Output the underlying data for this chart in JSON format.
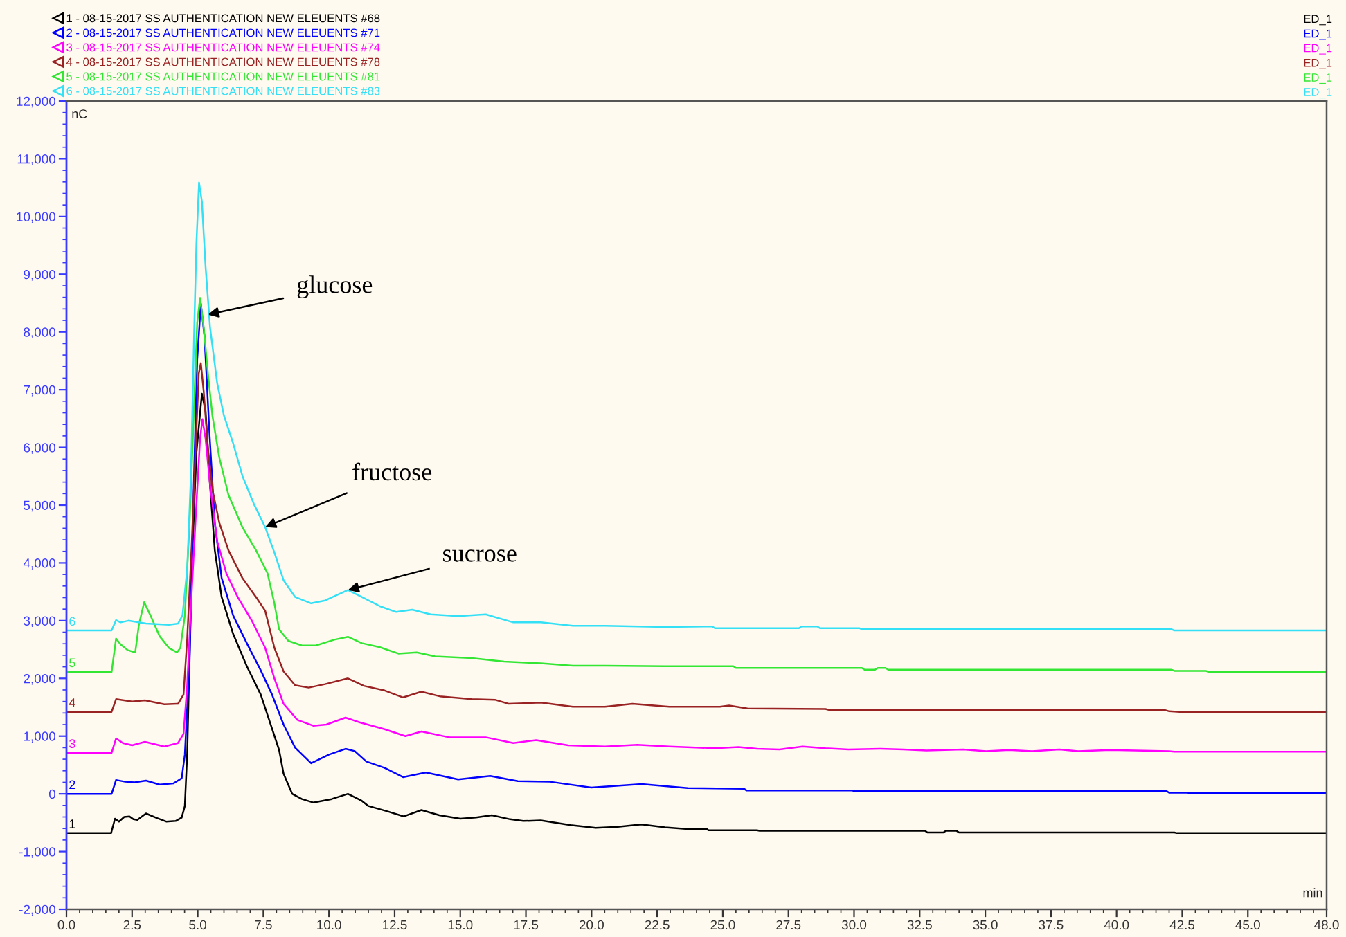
{
  "chart_data": {
    "type": "line",
    "xlabel": "min",
    "ylabel": "nC",
    "xlim": [
      0,
      48
    ],
    "ylim": [
      -2000,
      12000
    ],
    "xticks": [
      {
        "value": 0,
        "label": "0.0"
      },
      {
        "value": 0.5,
        "label": null
      },
      {
        "value": 1,
        "label": null
      },
      {
        "value": 1.5,
        "label": null
      },
      {
        "value": 2,
        "label": null
      },
      2.5,
      {
        "value": 3,
        "label": null
      },
      {
        "value": 3.5,
        "label": null
      },
      {
        "value": 4,
        "label": null
      },
      {
        "value": 4.5,
        "label": null
      },
      {
        "value": 5,
        "label": "5.0"
      },
      {
        "value": 5.5,
        "label": null
      },
      {
        "value": 6,
        "label": null
      },
      {
        "value": 6.5,
        "label": null
      },
      {
        "value": 7,
        "label": null
      },
      7.5,
      {
        "value": 8,
        "label": null
      },
      {
        "value": 8.5,
        "label": null
      },
      {
        "value": 9,
        "label": null
      },
      {
        "value": 9.5,
        "label": null
      },
      {
        "value": 10,
        "label": "10.0"
      },
      {
        "value": 10.5,
        "label": null
      },
      {
        "value": 11,
        "label": null
      },
      {
        "value": 11.5,
        "label": null
      },
      {
        "value": 12,
        "label": null
      },
      12.5,
      {
        "value": 13,
        "label": null
      },
      {
        "value": 13.5,
        "label": null
      },
      {
        "value": 14,
        "label": null
      },
      {
        "value": 14.5,
        "label": null
      },
      {
        "value": 15,
        "label": "15.0"
      },
      {
        "value": 15.5,
        "label": null
      },
      {
        "value": 16,
        "label": null
      },
      {
        "value": 16.5,
        "label": null
      },
      {
        "value": 17,
        "label": null
      },
      17.5,
      {
        "value": 18,
        "label": null
      },
      {
        "value": 18.5,
        "label": null
      },
      {
        "value": 19,
        "label": null
      },
      {
        "value": 19.5,
        "label": null
      },
      {
        "value": 20,
        "label": "20.0"
      },
      {
        "value": 20.5,
        "label": null
      },
      {
        "value": 21,
        "label": null
      },
      {
        "value": 21.5,
        "label": null
      },
      {
        "value": 22,
        "label": null
      },
      22.5,
      {
        "value": 23,
        "label": null
      },
      {
        "value": 23.5,
        "label": null
      },
      {
        "value": 24,
        "label": null
      },
      {
        "value": 24.5,
        "label": null
      },
      {
        "value": 25,
        "label": "25.0"
      },
      {
        "value": 25.5,
        "label": null
      },
      {
        "value": 26,
        "label": null
      },
      {
        "value": 26.5,
        "label": null
      },
      {
        "value": 27,
        "label": null
      },
      27.5,
      {
        "value": 28,
        "label": null
      },
      {
        "value": 28.5,
        "label": null
      },
      {
        "value": 29,
        "label": null
      },
      {
        "value": 29.5,
        "label": null
      },
      {
        "value": 30,
        "label": "30.0"
      },
      {
        "value": 30.5,
        "label": null
      },
      {
        "value": 31,
        "label": null
      },
      {
        "value": 31.5,
        "label": null
      },
      {
        "value": 32,
        "label": null
      },
      32.5,
      {
        "value": 33,
        "label": null
      },
      {
        "value": 33.5,
        "label": null
      },
      {
        "value": 34,
        "label": null
      },
      {
        "value": 34.5,
        "label": null
      },
      {
        "value": 35,
        "label": "35.0"
      },
      {
        "value": 35.5,
        "label": null
      },
      {
        "value": 36,
        "label": null
      },
      {
        "value": 36.5,
        "label": null
      },
      {
        "value": 37,
        "label": null
      },
      37.5,
      {
        "value": 38,
        "label": null
      },
      {
        "value": 38.5,
        "label": null
      },
      {
        "value": 39,
        "label": null
      },
      {
        "value": 39.5,
        "label": null
      },
      {
        "value": 40,
        "label": "40.0"
      },
      {
        "value": 40.5,
        "label": null
      },
      {
        "value": 41,
        "label": null
      },
      {
        "value": 41.5,
        "label": null
      },
      {
        "value": 42,
        "label": null
      },
      42.5,
      {
        "value": 43,
        "label": null
      },
      {
        "value": 43.5,
        "label": null
      },
      {
        "value": 44,
        "label": null
      },
      {
        "value": 44.5,
        "label": null
      },
      {
        "value": 45,
        "label": "45.0"
      },
      {
        "value": 45.5,
        "label": null
      },
      {
        "value": 46,
        "label": null
      },
      {
        "value": 46.5,
        "label": null
      },
      {
        "value": 47,
        "label": null
      },
      {
        "value": 47.5,
        "label": null
      },
      {
        "value": 48,
        "label": "48.0"
      }
    ],
    "yticks": [
      {
        "value": -2000,
        "label": "-2,000"
      },
      {
        "value": -1800,
        "label": null
      },
      {
        "value": -1600,
        "label": null
      },
      {
        "value": -1400,
        "label": null
      },
      {
        "value": -1200,
        "label": null
      },
      {
        "value": -1000,
        "label": "-1,000"
      },
      {
        "value": -800,
        "label": null
      },
      {
        "value": -600,
        "label": null
      },
      {
        "value": -400,
        "label": null
      },
      {
        "value": -200,
        "label": null
      },
      0,
      {
        "value": 200,
        "label": null
      },
      {
        "value": 400,
        "label": null
      },
      {
        "value": 600,
        "label": null
      },
      {
        "value": 800,
        "label": null
      },
      {
        "value": 1000,
        "label": "1,000"
      },
      {
        "value": 1200,
        "label": null
      },
      {
        "value": 1400,
        "label": null
      },
      {
        "value": 1600,
        "label": null
      },
      {
        "value": 1800,
        "label": null
      },
      {
        "value": 2000,
        "label": "2,000"
      },
      {
        "value": 2200,
        "label": null
      },
      {
        "value": 2400,
        "label": null
      },
      {
        "value": 2600,
        "label": null
      },
      {
        "value": 2800,
        "label": null
      },
      {
        "value": 3000,
        "label": "3,000"
      },
      {
        "value": 3200,
        "label": null
      },
      {
        "value": 3400,
        "label": null
      },
      {
        "value": 3600,
        "label": null
      },
      {
        "value": 3800,
        "label": null
      },
      {
        "value": 4000,
        "label": "4,000"
      },
      {
        "value": 4200,
        "label": null
      },
      {
        "value": 4400,
        "label": null
      },
      {
        "value": 4600,
        "label": null
      },
      {
        "value": 4800,
        "label": null
      },
      {
        "value": 5000,
        "label": "5,000"
      },
      {
        "value": 5200,
        "label": null
      },
      {
        "value": 5400,
        "label": null
      },
      {
        "value": 5600,
        "label": null
      },
      {
        "value": 5800,
        "label": null
      },
      {
        "value": 6000,
        "label": "6,000"
      },
      {
        "value": 6200,
        "label": null
      },
      {
        "value": 6400,
        "label": null
      },
      {
        "value": 6600,
        "label": null
      },
      {
        "value": 6800,
        "label": null
      },
      {
        "value": 7000,
        "label": "7,000"
      },
      {
        "value": 7200,
        "label": null
      },
      {
        "value": 7400,
        "label": null
      },
      {
        "value": 7600,
        "label": null
      },
      {
        "value": 7800,
        "label": null
      },
      {
        "value": 8000,
        "label": "8,000"
      },
      {
        "value": 8200,
        "label": null
      },
      {
        "value": 8400,
        "label": null
      },
      {
        "value": 8600,
        "label": null
      },
      {
        "value": 8800,
        "label": null
      },
      {
        "value": 9000,
        "label": "9,000"
      },
      {
        "value": 9200,
        "label": null
      },
      {
        "value": 9400,
        "label": null
      },
      {
        "value": 9600,
        "label": null
      },
      {
        "value": 9800,
        "label": null
      },
      {
        "value": 10000,
        "label": "10,000"
      },
      {
        "value": 10200,
        "label": null
      },
      {
        "value": 10400,
        "label": null
      },
      {
        "value": 10600,
        "label": null
      },
      {
        "value": 10800,
        "label": null
      },
      {
        "value": 11000,
        "label": "11,000"
      },
      {
        "value": 11200,
        "label": null
      },
      {
        "value": 11400,
        "label": null
      },
      {
        "value": 11600,
        "label": null
      },
      {
        "value": 11800,
        "label": null
      },
      {
        "value": 12000,
        "label": "12,000"
      }
    ],
    "legend": "top",
    "series": [
      {
        "name": "1 - 08-15-2017 SS AUTHENTICATION NEW ELEUENTS #68",
        "color": "#000000",
        "x": [
          0,
          1.7,
          1.85,
          2.0,
          2.2,
          2.4,
          2.55,
          2.7,
          3.03,
          3.4,
          3.8,
          4.16,
          4.39,
          4.51,
          4.6,
          4.77,
          4.95,
          5.16,
          5.3,
          5.47,
          5.65,
          5.91,
          6.35,
          6.87,
          7.4,
          7.75,
          8.1,
          8.27,
          8.6,
          8.97,
          9.4,
          10.1,
          10.72,
          11.25,
          11.5,
          12.2,
          12.85,
          13.52,
          14.2,
          15.0,
          15.6,
          16.2,
          16.9,
          17.4,
          18.07,
          19.2,
          20.16,
          21.0,
          21.9,
          22.8,
          23.66,
          24.4,
          24.45,
          26.3,
          26.4,
          32.7,
          32.8,
          33.4,
          33.5,
          33.9,
          34.0,
          42.2,
          42.3,
          48
        ],
        "values": [
          -680,
          -680,
          -430,
          -480,
          -400,
          -390,
          -440,
          -450,
          -340,
          -410,
          -480,
          -470,
          -410,
          -210,
          700,
          3900,
          5910,
          6930,
          6630,
          5340,
          4220,
          3410,
          2770,
          2210,
          1720,
          1240,
          760,
          350,
          0,
          -90,
          -150,
          -90,
          0,
          -120,
          -210,
          -300,
          -390,
          -280,
          -370,
          -430,
          -410,
          -370,
          -440,
          -470,
          -460,
          -540,
          -590,
          -570,
          -530,
          -580,
          -610,
          -610,
          -630,
          -630,
          -640,
          -640,
          -670,
          -670,
          -640,
          -640,
          -670,
          -670,
          -680,
          -680
        ]
      },
      {
        "name": "2 - 08-15-2017 SS AUTHENTICATION NEW ELEUENTS #71",
        "color": "#0000ff",
        "x": [
          0,
          1.72,
          1.89,
          2.24,
          2.6,
          3.03,
          3.55,
          4.07,
          4.39,
          4.51,
          4.69,
          4.86,
          4.98,
          5.12,
          5.26,
          5.44,
          5.65,
          5.91,
          6.35,
          6.87,
          7.4,
          7.83,
          8.27,
          8.71,
          9.32,
          10.0,
          10.63,
          10.98,
          11.42,
          12.12,
          12.82,
          13.69,
          14.92,
          16.14,
          17.19,
          18.42,
          19.99,
          21.91,
          23.66,
          25.8,
          25.9,
          29.9,
          30.0,
          41.9,
          42.0,
          42.7,
          42.8,
          48
        ],
        "values": [
          0,
          0,
          240,
          210,
          200,
          230,
          160,
          180,
          270,
          680,
          2290,
          5510,
          7520,
          8490,
          7920,
          6310,
          4700,
          3740,
          3090,
          2610,
          2140,
          1720,
          1200,
          800,
          530,
          680,
          780,
          740,
          560,
          450,
          290,
          370,
          250,
          310,
          220,
          210,
          110,
          170,
          100,
          90,
          60,
          60,
          50,
          50,
          20,
          20,
          10,
          10
        ]
      },
      {
        "name": "3 - 08-15-2017 SS AUTHENTICATION NEW ELEUENTS #74",
        "color": "#ff00ff",
        "x": [
          0,
          1.72,
          1.89,
          2.15,
          2.5,
          2.99,
          3.73,
          4.25,
          4.46,
          4.6,
          4.77,
          4.95,
          5.09,
          5.18,
          5.3,
          5.47,
          5.74,
          6.09,
          6.52,
          7.05,
          7.57,
          7.92,
          8.27,
          8.8,
          9.4,
          9.9,
          10.63,
          11.16,
          12.12,
          12.91,
          13.52,
          14.57,
          15.97,
          17.02,
          17.89,
          19.11,
          20.51,
          21.74,
          22.96,
          24.71,
          25.6,
          26.3,
          27.16,
          28.04,
          28.91,
          29.79,
          31.0,
          31.88,
          32.76,
          34.16,
          35.03,
          35.9,
          36.78,
          37.83,
          38.53,
          39.75,
          42.0,
          42.2,
          48
        ],
        "values": [
          710,
          710,
          960,
          880,
          840,
          900,
          820,
          880,
          1040,
          1880,
          3490,
          5020,
          6150,
          6490,
          6150,
          5350,
          4380,
          3820,
          3410,
          3010,
          2530,
          2000,
          1560,
          1280,
          1180,
          1200,
          1320,
          1240,
          1120,
          1000,
          1080,
          980,
          980,
          880,
          930,
          840,
          820,
          850,
          820,
          790,
          810,
          780,
          770,
          820,
          790,
          770,
          780,
          770,
          750,
          770,
          740,
          760,
          740,
          770,
          740,
          760,
          740,
          730,
          730
        ]
      },
      {
        "name": "4 - 08-15-2017 SS AUTHENTICATION NEW ELEUENTS #78",
        "color": "#992222",
        "x": [
          0,
          1.72,
          1.89,
          2.5,
          2.99,
          3.73,
          4.25,
          4.46,
          4.6,
          4.77,
          4.95,
          5.04,
          5.12,
          5.23,
          5.39,
          5.56,
          5.82,
          6.17,
          6.7,
          7.22,
          7.57,
          7.92,
          8.27,
          8.71,
          9.23,
          9.85,
          10.72,
          11.33,
          12.12,
          12.82,
          13.52,
          14.22,
          15.44,
          16.32,
          16.84,
          18.07,
          19.29,
          20.51,
          21.56,
          22.96,
          24.89,
          25.24,
          25.94,
          28.91,
          29.09,
          41.85,
          42.0,
          42.4,
          48
        ],
        "values": [
          1420,
          1420,
          1640,
          1600,
          1620,
          1550,
          1560,
          1720,
          2690,
          4300,
          6310,
          7280,
          7460,
          6960,
          5990,
          5270,
          4700,
          4220,
          3740,
          3410,
          3170,
          2530,
          2120,
          1880,
          1840,
          1900,
          2000,
          1870,
          1790,
          1670,
          1770,
          1690,
          1640,
          1630,
          1560,
          1580,
          1510,
          1510,
          1560,
          1510,
          1510,
          1530,
          1480,
          1470,
          1450,
          1450,
          1430,
          1420,
          1420
        ]
      },
      {
        "name": "5 - 08-15-2017 SS AUTHENTICATION NEW ELEUENTS #81",
        "color": "#33e633",
        "x": [
          0,
          1.72,
          1.89,
          2.06,
          2.33,
          2.62,
          2.76,
          2.96,
          3.2,
          3.55,
          3.9,
          4.21,
          4.34,
          4.51,
          4.69,
          4.86,
          4.98,
          5.09,
          5.23,
          5.39,
          5.56,
          5.82,
          6.17,
          6.7,
          7.22,
          7.66,
          7.92,
          8.1,
          8.45,
          8.97,
          9.5,
          10.2,
          10.72,
          11.25,
          11.94,
          12.64,
          13.34,
          14.04,
          15.44,
          16.67,
          18.07,
          19.29,
          20.51,
          22.79,
          25.4,
          25.5,
          30.3,
          30.4,
          30.8,
          30.9,
          31.2,
          31.3,
          42.1,
          42.2,
          43.4,
          43.5,
          48
        ],
        "values": [
          2110,
          2110,
          2690,
          2590,
          2490,
          2450,
          2930,
          3320,
          3090,
          2730,
          2530,
          2450,
          2530,
          3090,
          4700,
          6710,
          8160,
          8590,
          8080,
          7280,
          6550,
          5830,
          5180,
          4620,
          4220,
          3820,
          3300,
          2850,
          2650,
          2570,
          2570,
          2670,
          2720,
          2610,
          2540,
          2430,
          2450,
          2380,
          2350,
          2290,
          2260,
          2220,
          2220,
          2210,
          2210,
          2180,
          2180,
          2150,
          2150,
          2180,
          2180,
          2150,
          2150,
          2130,
          2130,
          2110,
          2110
        ]
      },
      {
        "name": "6 - 08-15-2017 SS AUTHENTICATION NEW ELEUENTS #83",
        "color": "#33e0f5",
        "x": [
          0,
          1.72,
          1.89,
          2.06,
          2.36,
          3.03,
          3.9,
          4.25,
          4.42,
          4.6,
          4.74,
          4.86,
          4.95,
          5.05,
          5.16,
          5.3,
          5.47,
          5.74,
          6.0,
          6.35,
          6.7,
          7.14,
          7.57,
          7.92,
          8.27,
          8.71,
          9.32,
          9.85,
          10.72,
          11.25,
          11.94,
          12.56,
          13.17,
          13.87,
          14.92,
          15.97,
          17.02,
          18.07,
          19.29,
          20.51,
          22.79,
          24.6,
          24.7,
          27.9,
          28.0,
          28.6,
          28.7,
          30.2,
          30.3,
          42.1,
          42.2,
          48
        ],
        "values": [
          2830,
          2830,
          3010,
          2970,
          3000,
          2950,
          2930,
          2950,
          3090,
          3900,
          5510,
          7920,
          9530,
          10590,
          10260,
          9130,
          8080,
          7120,
          6550,
          6070,
          5510,
          5020,
          4620,
          4180,
          3700,
          3410,
          3300,
          3350,
          3530,
          3410,
          3250,
          3150,
          3190,
          3110,
          3080,
          3110,
          2970,
          2970,
          2910,
          2910,
          2890,
          2900,
          2870,
          2870,
          2900,
          2900,
          2870,
          2870,
          2850,
          2850,
          2830,
          2830
        ]
      }
    ],
    "annotations": [
      "ED_1",
      "ED_1",
      "ED_1",
      "ED_1",
      "ED_1",
      "ED_1",
      {
        "text": "glucose",
        "x": 5.39,
        "y": 8300
      },
      {
        "text": "fructose",
        "x": 7.57,
        "y": 4620
      },
      {
        "text": "sucrose",
        "x": 10.72,
        "y": 3530
      },
      {
        "text": "1",
        "x": 0,
        "y": -680
      },
      {
        "text": "2",
        "x": 0,
        "y": 0
      },
      {
        "text": "3",
        "x": 0,
        "y": 710
      },
      {
        "text": "4",
        "x": 0,
        "y": 1420
      },
      {
        "text": "5",
        "x": 0,
        "y": 2110
      },
      {
        "text": "6",
        "x": 0,
        "y": 2830
      }
    ]
  }
}
